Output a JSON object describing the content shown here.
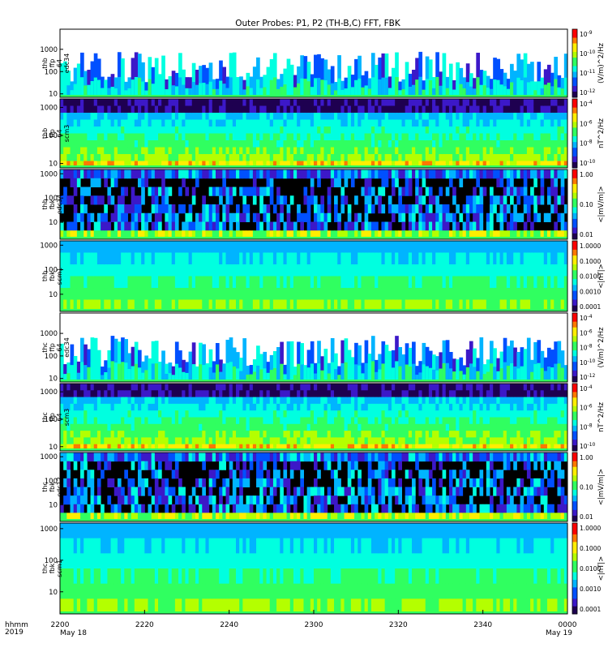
{
  "title": "Outer Probes: P1, P2 (TH-B,C) FFT, FBK",
  "footer": {
    "hhmm_label": "hhmm",
    "year_label": "2019",
    "start_date": "May 18",
    "end_date": "May 19",
    "time_ticks": [
      "2200",
      "2220",
      "2240",
      "2300",
      "2320",
      "2340",
      "0000"
    ]
  },
  "colors": {
    "background": "#ffffff",
    "no_data": "#000000",
    "colormap": [
      "#1e0050",
      "#3c18c8",
      "#0050ff",
      "#00b4ff",
      "#00ffe0",
      "#30ff60",
      "#b4ff00",
      "#ffee00",
      "#ff7800",
      "#ff0000"
    ]
  },
  "chart_data": [
    {
      "type": "heatmap",
      "panel": "thb ffp 64 edc34",
      "ylabel": [
        "thb",
        "ffp",
        "64",
        "edc34"
      ],
      "yticks": [
        "10",
        "100",
        "1000"
      ],
      "ylim": [
        7,
        8000
      ],
      "y_scale": "log",
      "colorbar_ticks": [
        "10^-9",
        "10^-10",
        "10^-11",
        "10^-12"
      ],
      "colorbar_label": "(V/m)^2/Hz",
      "texture": "sparse",
      "level": 0.42
    },
    {
      "type": "heatmap",
      "panel": "thb ffp 64 scm3",
      "ylabel": [
        "thb",
        "ffp",
        "64",
        "scm3"
      ],
      "yticks": [
        "10",
        "100",
        "1000"
      ],
      "ylim": [
        7,
        2000
      ],
      "y_scale": "log",
      "colorbar_ticks": [
        "10^-4",
        "10^-6",
        "10^-8",
        "10^-10"
      ],
      "colorbar_label": "nT^2/Hz",
      "texture": "bands",
      "level": 0.45
    },
    {
      "type": "heatmap",
      "panel": "thb fbk edc34",
      "ylabel": [
        "thb",
        "fbk",
        "edc34"
      ],
      "yticks": [
        "10",
        "100",
        "1000"
      ],
      "ylim": [
        2,
        1500
      ],
      "y_scale": "log",
      "colorbar_ticks": [
        "1.00",
        "0.10",
        "0.01"
      ],
      "colorbar_label": "<|mV/m|>",
      "texture": "dark",
      "level": 0.3
    },
    {
      "type": "heatmap",
      "panel": "thb fbk scm1",
      "ylabel": [
        "thb",
        "fbk",
        "scm1"
      ],
      "yticks": [
        "10",
        "100",
        "1000"
      ],
      "ylim": [
        2,
        1500
      ],
      "y_scale": "log",
      "colorbar_ticks": [
        "1.0000",
        "0.1000",
        "0.0100",
        "0.0010",
        "0.0001"
      ],
      "colorbar_label": "<|nT|>",
      "texture": "smooth",
      "level": 0.38
    },
    {
      "type": "heatmap",
      "panel": "thc ffp 64 edc34",
      "ylabel": [
        "thc",
        "ffp",
        "64",
        "edc34"
      ],
      "yticks": [
        "10",
        "100",
        "1000"
      ],
      "ylim": [
        7,
        8000
      ],
      "y_scale": "log",
      "colorbar_ticks": [
        "10^-4",
        "10^-6",
        "10^-8",
        "10^-10",
        "10^-12"
      ],
      "colorbar_label": "(V/m)^2/Hz",
      "texture": "sparse",
      "level": 0.45
    },
    {
      "type": "heatmap",
      "panel": "thc ffp 64 scm3",
      "ylabel": [
        "thc",
        "ffp",
        "64",
        "scm3"
      ],
      "yticks": [
        "10",
        "100",
        "1000"
      ],
      "ylim": [
        7,
        2000
      ],
      "y_scale": "log",
      "colorbar_ticks": [
        "10^-4",
        "10^-6",
        "10^-8",
        "10^-10"
      ],
      "colorbar_label": "nT^2/Hz",
      "texture": "bands",
      "level": 0.5
    },
    {
      "type": "heatmap",
      "panel": "thc fbk edc12",
      "ylabel": [
        "thc",
        "fbk",
        "edc12"
      ],
      "yticks": [
        "10",
        "100",
        "1000"
      ],
      "ylim": [
        2,
        1500
      ],
      "y_scale": "log",
      "colorbar_ticks": [
        "1.00",
        "0.10",
        "0.01"
      ],
      "colorbar_label": "<|mV/m|>",
      "texture": "dark",
      "level": 0.35
    },
    {
      "type": "heatmap",
      "panel": "thc fbk scm1",
      "ylabel": [
        "thc",
        "fbk",
        "scm1"
      ],
      "yticks": [
        "10",
        "100",
        "1000"
      ],
      "ylim": [
        2,
        1500
      ],
      "y_scale": "log",
      "colorbar_ticks": [
        "1.0000",
        "0.1000",
        "0.0100",
        "0.0010",
        "0.0001"
      ],
      "colorbar_label": "<|nT|>",
      "texture": "smooth",
      "level": 0.4
    }
  ]
}
